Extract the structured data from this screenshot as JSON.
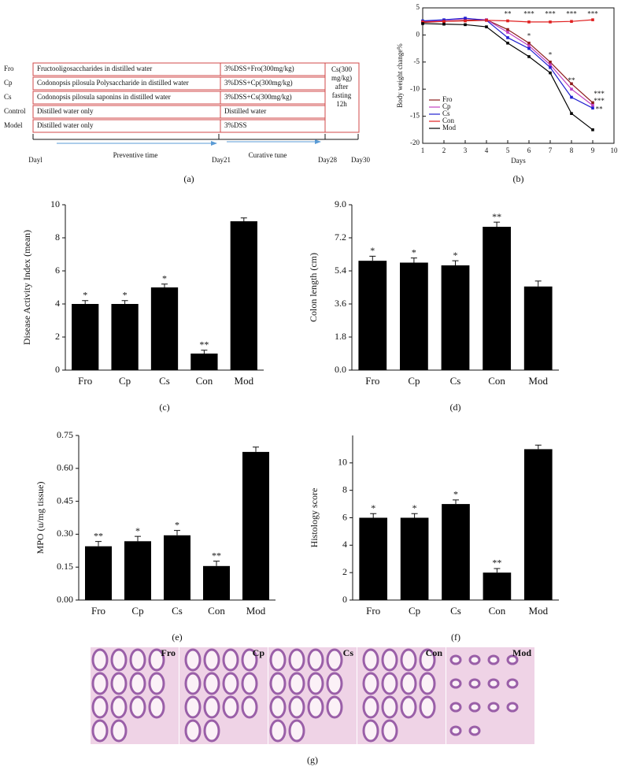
{
  "diagram": {
    "label": "(a)",
    "groups": [
      {
        "name": "Fro",
        "preventive": "Fructooligosaccharides in distilled water",
        "curative": "3%DSS+Fro(300mg/kg)"
      },
      {
        "name": "Cp",
        "preventive": "Codonopsis pilosula Polysaccharide in distilled water",
        "curative": "3%DSS+Cp(300mg/kg)"
      },
      {
        "name": "Cs",
        "preventive": "Codonopsis pilosula saponins in distilled water",
        "curative": "3%DSS+Cs(300mg/kg)"
      },
      {
        "name": "Control",
        "preventive": "Distilled water only",
        "curative": "Distilled water"
      },
      {
        "name": "Model",
        "preventive": "Distilled water only",
        "curative": "3%DSS"
      }
    ],
    "final": [
      "Cs(300",
      "mg/kg)",
      "after",
      "fasting",
      "12h"
    ],
    "days": [
      "Dayl",
      "Day21",
      "Day28",
      "Day30"
    ],
    "phases": [
      "Preventive time",
      "Curative tune"
    ]
  },
  "chart_data": [
    {
      "type": "line",
      "label": "(b)",
      "x_label": "Days",
      "y_label": "Body weight change%",
      "x": [
        1,
        2,
        3,
        4,
        5,
        6,
        7,
        8,
        9
      ],
      "series": [
        {
          "name": "Fro",
          "color": "#8b1a1a",
          "values": [
            2.3,
            2.5,
            2.7,
            2.8,
            1.0,
            -1.5,
            -5,
            -9,
            -12.5
          ]
        },
        {
          "name": "Cp",
          "color": "#c040c0",
          "values": [
            2.5,
            2.7,
            3.0,
            2.8,
            0.5,
            -2,
            -5.5,
            -10,
            -13
          ]
        },
        {
          "name": "Cs",
          "color": "#2020d0",
          "values": [
            2.6,
            2.8,
            3.1,
            2.7,
            -0.5,
            -2.5,
            -6,
            -11.5,
            -13.5
          ]
        },
        {
          "name": "Con",
          "color": "#e02020",
          "values": [
            2.4,
            2.5,
            2.6,
            2.7,
            2.6,
            2.4,
            2.4,
            2.5,
            2.8
          ]
        },
        {
          "name": "Mod",
          "color": "#000000",
          "values": [
            2.1,
            2.0,
            1.9,
            1.5,
            -1.5,
            -4,
            -7,
            -14.5,
            -17.5
          ]
        }
      ],
      "xlim": [
        1,
        10
      ],
      "xticks": [
        1,
        2,
        3,
        4,
        5,
        6,
        7,
        8,
        9,
        10
      ],
      "ylim": [
        -20,
        5
      ],
      "yticks": [
        -20,
        -15,
        -10,
        -5,
        0,
        5
      ],
      "legend": "lower left",
      "annotations": [
        {
          "text": "**",
          "x": 5,
          "y": 3.8
        },
        {
          "text": "***",
          "x": 6,
          "y": 3.8
        },
        {
          "text": "***",
          "x": 7,
          "y": 3.8
        },
        {
          "text": "***",
          "x": 8,
          "y": 3.8
        },
        {
          "text": "***",
          "x": 9,
          "y": 3.8
        },
        {
          "text": "*",
          "x": 6,
          "y": -0.3
        },
        {
          "text": "*",
          "x": 7,
          "y": -3.8
        },
        {
          "text": "**",
          "x": 8,
          "y": -8.5
        },
        {
          "text": "***",
          "x": 9.3,
          "y": -11
        },
        {
          "text": "***",
          "x": 9.3,
          "y": -12.3
        },
        {
          "text": "**",
          "x": 9.3,
          "y": -13.8
        }
      ]
    },
    {
      "type": "bar",
      "label": "(c)",
      "y_label": "Disease Activity Index (mean)",
      "color": "#000000",
      "categories": [
        "Fro",
        "Cp",
        "Cs",
        "Con",
        "Mod"
      ],
      "values": [
        4,
        4,
        5,
        1,
        9
      ],
      "errors": [
        0.2,
        0.2,
        0.2,
        0.2,
        0.2
      ],
      "stars": [
        "*",
        "*",
        "*",
        "**",
        null
      ],
      "ylim": [
        0,
        10
      ],
      "yticks": [
        0,
        2,
        4,
        6,
        8,
        10
      ]
    },
    {
      "type": "bar",
      "label": "(d)",
      "y_label": "Colon length (cm)",
      "color": "#000000",
      "categories": [
        "Fro",
        "Cp",
        "Cs",
        "Con",
        "Mod"
      ],
      "values": [
        5.95,
        5.85,
        5.7,
        7.8,
        4.55
      ],
      "errors": [
        0.25,
        0.25,
        0.25,
        0.25,
        0.3
      ],
      "stars": [
        "*",
        "*",
        "*",
        "**",
        null
      ],
      "ylim": [
        0,
        9
      ],
      "yticks": [
        {
          "value": 0,
          "label": "0.0"
        },
        1.8,
        3.6,
        5.4,
        7.2,
        {
          "value": 9,
          "label": "9.0"
        }
      ]
    },
    {
      "type": "bar",
      "label": "(e)",
      "y_label": "MPO (u/mg tissue)",
      "color": "#000000",
      "categories": [
        "Fro",
        "Cp",
        "Cs",
        "Con",
        "Mod"
      ],
      "values": [
        0.245,
        0.268,
        0.295,
        0.155,
        0.675
      ],
      "errors": [
        0.022,
        0.022,
        0.022,
        0.022,
        0.022
      ],
      "stars": [
        "**",
        "*",
        "*",
        "**",
        null
      ],
      "ylim": [
        0,
        0.75
      ],
      "yticks": [
        {
          "value": 0,
          "label": "0.00"
        },
        0.15,
        {
          "value": 0.3,
          "label": "0.30"
        },
        0.45,
        {
          "value": 0.6,
          "label": "0.60"
        },
        0.75
      ]
    },
    {
      "type": "bar",
      "label": "(f)",
      "y_label": "Histology score",
      "color": "#000000",
      "categories": [
        "Fro",
        "Cp",
        "Cs",
        "Con",
        "Mod"
      ],
      "values": [
        6,
        6,
        7,
        2,
        11
      ],
      "errors": [
        0.3,
        0.3,
        0.3,
        0.3,
        0.3
      ],
      "stars": [
        "*",
        "*",
        "*",
        "**",
        null
      ],
      "ylim": [
        0,
        12
      ],
      "yticks": [
        0,
        2,
        4,
        6,
        8,
        10
      ]
    }
  ],
  "images": {
    "label": "(g)",
    "panels": [
      "Fro",
      "Cp",
      "Cs",
      "Con",
      "Mod"
    ]
  }
}
